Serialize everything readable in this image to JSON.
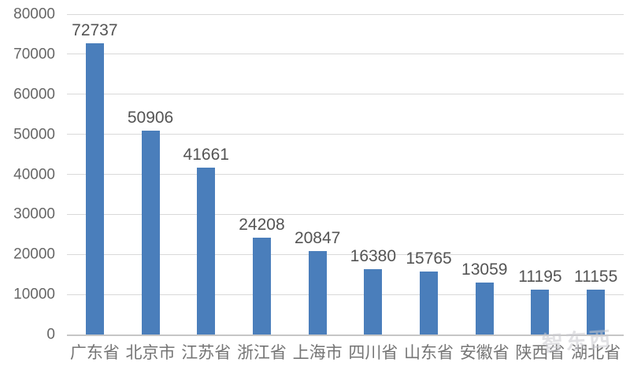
{
  "chart_data": {
    "type": "bar",
    "title": "",
    "xlabel": "",
    "ylabel": "",
    "categories": [
      "广东省",
      "北京市",
      "江苏省",
      "浙江省",
      "上海市",
      "四川省",
      "山东省",
      "安徽省",
      "陕西省",
      "湖北省"
    ],
    "values": [
      72737,
      50906,
      41661,
      24208,
      20847,
      16380,
      15765,
      13059,
      11195,
      11155
    ],
    "ylim": [
      0,
      80000
    ],
    "yticks": [
      0,
      10000,
      20000,
      30000,
      40000,
      50000,
      60000,
      70000,
      80000
    ],
    "grid": "horizontal",
    "legend": "none",
    "value_labels": true,
    "bar_color": "#4A7EBB",
    "gridline_color": "#D9D9D9",
    "axis_line_color": "#C6C6C6",
    "ytick_label_color": "#666666",
    "value_label_color": "#545454",
    "category_label_color": "#757575"
  },
  "watermark": {
    "text": "智东西"
  }
}
